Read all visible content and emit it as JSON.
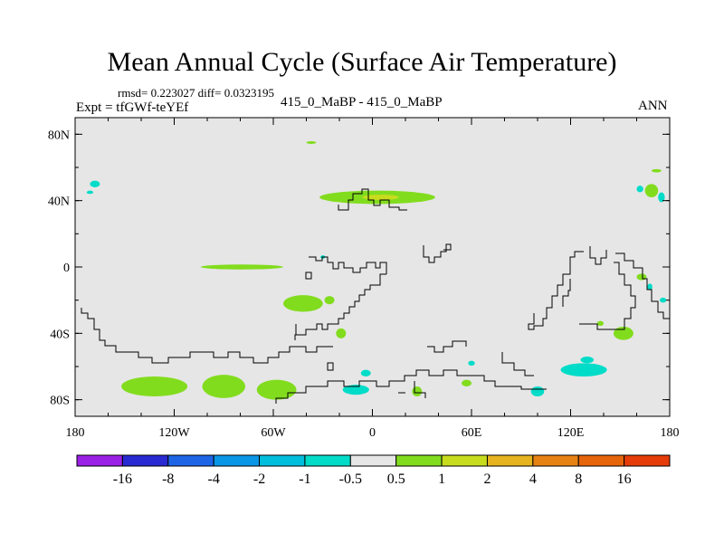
{
  "header": {
    "title": "Mean Annual Cycle (Surface Air Temperature)",
    "stats": "rmsd= 0.223027 diff= 0.0323195",
    "experiment": "Expt = tfGWf-teYEf",
    "comparison": "415_0_MaBP - 415_0_MaBP",
    "season": "ANN"
  },
  "chart_data": {
    "type": "heatmap",
    "title": "Mean Annual Cycle (Surface Air Temperature)",
    "projection": "cylindrical-equidistant",
    "xlim": [
      -180,
      180
    ],
    "ylim": [
      -90,
      90
    ],
    "x_ticks": [
      {
        "value": -180,
        "label": "180"
      },
      {
        "value": -120,
        "label": "120W"
      },
      {
        "value": -60,
        "label": "60W"
      },
      {
        "value": 0,
        "label": "0"
      },
      {
        "value": 60,
        "label": "60E"
      },
      {
        "value": 120,
        "label": "120E"
      },
      {
        "value": 180,
        "label": "180"
      }
    ],
    "y_ticks": [
      {
        "value": 80,
        "label": "80N"
      },
      {
        "value": 40,
        "label": "40N"
      },
      {
        "value": 0,
        "label": "0"
      },
      {
        "value": -40,
        "label": "40S"
      },
      {
        "value": -80,
        "label": "80S"
      }
    ],
    "background_color": "#e6e6e6",
    "colorbar": {
      "boundaries": [
        "-16",
        "-8",
        "-4",
        "-2",
        "-1",
        "-0.5",
        "0.5",
        "1",
        "2",
        "4",
        "8",
        "16"
      ],
      "colors": [
        "#9b20e6",
        "#2a2ad2",
        "#1e64e6",
        "#0a96e6",
        "#00bedc",
        "#00dcc8",
        "#e6e6e6",
        "#82dc1e",
        "#c8dc1e",
        "#e6b41e",
        "#e68214",
        "#e6640a",
        "#e63c0a"
      ]
    },
    "anomaly_regions": [
      {
        "lon": 3,
        "lat": 42,
        "rx": 35,
        "ry": 4,
        "color": "#82dc1e"
      },
      {
        "lon": 5,
        "lat": 42,
        "rx": 11,
        "ry": 1.6,
        "color": "#c8dc1e"
      },
      {
        "lon": -79,
        "lat": 0,
        "rx": 25,
        "ry": 1.5,
        "color": "#82dc1e"
      },
      {
        "lon": -42,
        "lat": -22,
        "rx": 12,
        "ry": 5,
        "color": "#82dc1e"
      },
      {
        "lon": -26,
        "lat": -20,
        "rx": 3,
        "ry": 2.5,
        "color": "#82dc1e"
      },
      {
        "lon": -19,
        "lat": -40,
        "rx": 3,
        "ry": 3,
        "color": "#82dc1e"
      },
      {
        "lon": -132,
        "lat": -72,
        "rx": 20,
        "ry": 6,
        "color": "#82dc1e"
      },
      {
        "lon": -90,
        "lat": -72,
        "rx": 13,
        "ry": 7,
        "color": "#82dc1e"
      },
      {
        "lon": -58,
        "lat": -74,
        "rx": 12,
        "ry": 6,
        "color": "#82dc1e"
      },
      {
        "lon": 128,
        "lat": -62,
        "rx": 14,
        "ry": 4,
        "color": "#00dcc8"
      },
      {
        "lon": 100,
        "lat": -75,
        "rx": 4,
        "ry": 3,
        "color": "#00dcc8"
      },
      {
        "lon": -10,
        "lat": -74,
        "rx": 8,
        "ry": 3,
        "color": "#00dcc8"
      },
      {
        "lon": -4,
        "lat": -64,
        "rx": 3,
        "ry": 2,
        "color": "#00dcc8"
      },
      {
        "lon": 27,
        "lat": -75,
        "rx": 3,
        "ry": 3,
        "color": "#82dc1e"
      },
      {
        "lon": 57,
        "lat": -70,
        "rx": 3,
        "ry": 2,
        "color": "#82dc1e"
      },
      {
        "lon": 130,
        "lat": -56,
        "rx": 4,
        "ry": 2,
        "color": "#00dcc8"
      },
      {
        "lon": 152,
        "lat": -40,
        "rx": 6,
        "ry": 4,
        "color": "#82dc1e"
      },
      {
        "lon": 138,
        "lat": -34,
        "rx": 2,
        "ry": 1.5,
        "color": "#82dc1e"
      },
      {
        "lon": 163,
        "lat": -6,
        "rx": 3,
        "ry": 2,
        "color": "#82dc1e"
      },
      {
        "lon": 168,
        "lat": -12,
        "rx": 1.5,
        "ry": 2,
        "color": "#00dcc8"
      },
      {
        "lon": 176,
        "lat": -20,
        "rx": 2,
        "ry": 1.5,
        "color": "#00dcc8"
      },
      {
        "lon": 169,
        "lat": 46,
        "rx": 4,
        "ry": 4,
        "color": "#82dc1e"
      },
      {
        "lon": 172,
        "lat": 58,
        "rx": 3,
        "ry": 1,
        "color": "#82dc1e"
      },
      {
        "lon": 175,
        "lat": 42,
        "rx": 2,
        "ry": 3,
        "color": "#00dcc8"
      },
      {
        "lon": 162,
        "lat": 47,
        "rx": 2,
        "ry": 2,
        "color": "#00dcc8"
      },
      {
        "lon": -168,
        "lat": 50,
        "rx": 3,
        "ry": 2,
        "color": "#00dcc8"
      },
      {
        "lon": -171,
        "lat": 45,
        "rx": 2,
        "ry": 1,
        "color": "#00dcc8"
      },
      {
        "lon": -37,
        "lat": 75,
        "rx": 3,
        "ry": 0.6,
        "color": "#82dc1e"
      },
      {
        "lon": -30,
        "lat": 6,
        "rx": 1.5,
        "ry": 1,
        "color": "#00dcc8"
      },
      {
        "lon": 60,
        "lat": -58,
        "rx": 2,
        "ry": 1.5,
        "color": "#00dcc8"
      }
    ]
  }
}
